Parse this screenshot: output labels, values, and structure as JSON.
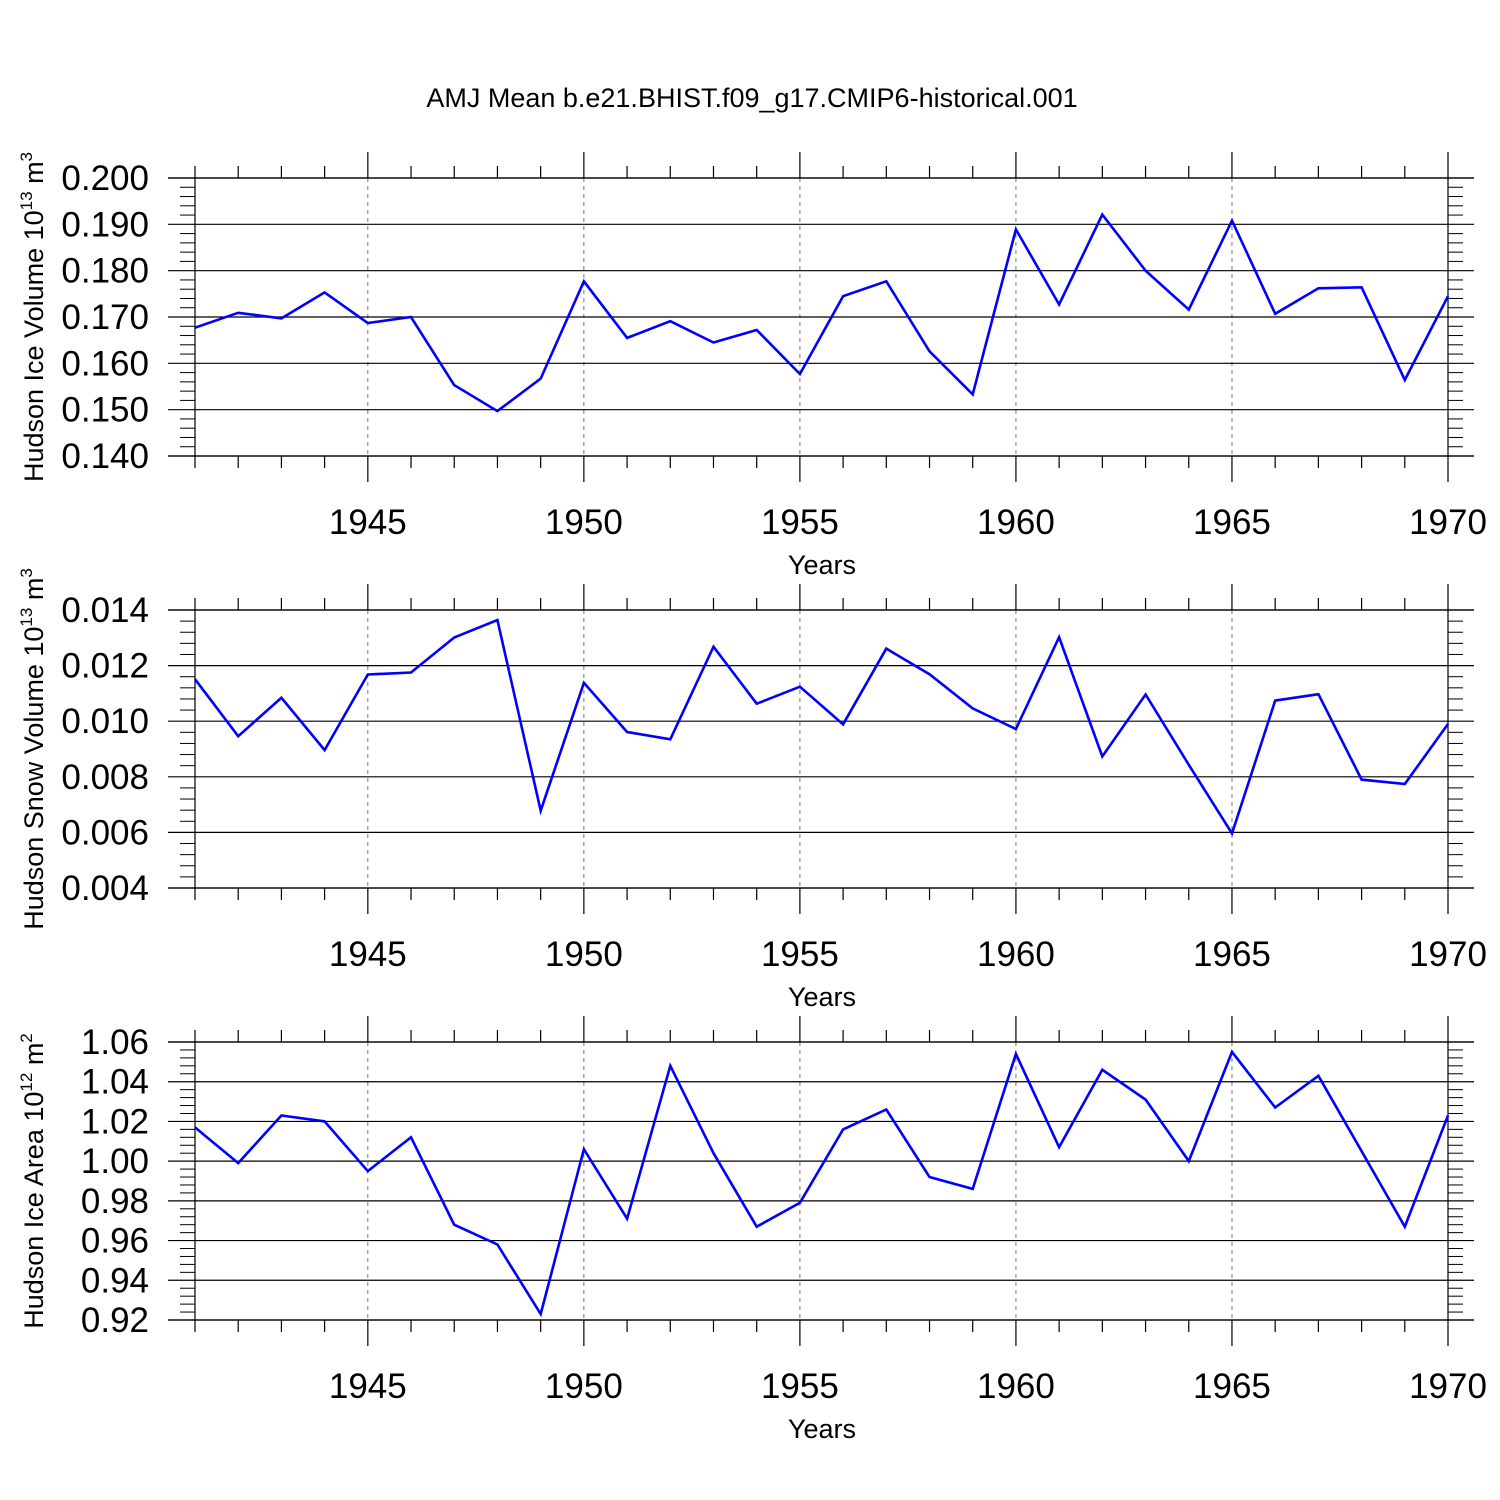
{
  "title": "AMJ Mean b.e21.BHIST.f09_g17.CMIP6-historical.001",
  "colors": {
    "line": "#0000ff",
    "axis": "#000000",
    "grid": "#7a7a7a"
  },
  "chart_data": [
    {
      "type": "line",
      "ylabel": {
        "main": "Hudson Ice Volume 10",
        "sup": "13",
        "unit": " m",
        "unit_sup": "3"
      },
      "xlabel": "Years",
      "xlim": [
        1941,
        1970
      ],
      "ylim": [
        0.14,
        0.2
      ],
      "yticks": [
        "0.140",
        "0.150",
        "0.160",
        "0.170",
        "0.180",
        "0.190",
        "0.200"
      ],
      "xticks": [
        "1945",
        "1950",
        "1955",
        "1960",
        "1965",
        "1970"
      ],
      "series": [
        {
          "name": "Hudson Ice Volume",
          "x": [
            1941,
            1942,
            1943,
            1944,
            1945,
            1946,
            1947,
            1948,
            1949,
            1950,
            1951,
            1952,
            1953,
            1954,
            1955,
            1956,
            1957,
            1958,
            1959,
            1960,
            1961,
            1962,
            1963,
            1964,
            1965,
            1966,
            1967,
            1968,
            1969,
            1970
          ],
          "values": [
            0.1677,
            0.1709,
            0.1697,
            0.1753,
            0.1687,
            0.17,
            0.1553,
            0.1497,
            0.1567,
            0.1777,
            0.1655,
            0.1691,
            0.1645,
            0.1672,
            0.1577,
            0.1745,
            0.1777,
            0.1626,
            0.1533,
            0.1889,
            0.1727,
            0.1921,
            0.18,
            0.1716,
            0.1908,
            0.1707,
            0.1762,
            0.1764,
            0.1564,
            0.1745
          ]
        }
      ]
    },
    {
      "type": "line",
      "ylabel": {
        "main": "Hudson Snow Volume 10",
        "sup": "13",
        "unit": " m",
        "unit_sup": "3"
      },
      "xlabel": "Years",
      "xlim": [
        1941,
        1970
      ],
      "ylim": [
        0.004,
        0.014
      ],
      "yticks": [
        "0.004",
        "0.006",
        "0.008",
        "0.010",
        "0.012",
        "0.014"
      ],
      "xticks": [
        "1945",
        "1950",
        "1955",
        "1960",
        "1965",
        "1970"
      ],
      "series": [
        {
          "name": "Hudson Snow Volume",
          "x": [
            1941,
            1942,
            1943,
            1944,
            1945,
            1946,
            1947,
            1948,
            1949,
            1950,
            1951,
            1952,
            1953,
            1954,
            1955,
            1956,
            1957,
            1958,
            1959,
            1960,
            1961,
            1962,
            1963,
            1964,
            1965,
            1966,
            1967,
            1968,
            1969,
            1970
          ],
          "values": [
            0.01151,
            0.00946,
            0.01084,
            0.00896,
            0.01168,
            0.01175,
            0.01301,
            0.01364,
            0.00678,
            0.01138,
            0.00961,
            0.00935,
            0.01268,
            0.01063,
            0.01124,
            0.00989,
            0.01261,
            0.01169,
            0.01046,
            0.00972,
            0.01302,
            0.00873,
            0.01096,
            0.00843,
            0.00596,
            0.01074,
            0.01097,
            0.0079,
            0.00774,
            0.0099
          ]
        }
      ]
    },
    {
      "type": "line",
      "ylabel": {
        "main": "Hudson Ice Area 10",
        "sup": "12",
        "unit": " m",
        "unit_sup": "2"
      },
      "xlabel": "Years",
      "xlim": [
        1941,
        1970
      ],
      "ylim": [
        0.92,
        1.06
      ],
      "yticks": [
        "0.92",
        "0.94",
        "0.96",
        "0.98",
        "1.00",
        "1.02",
        "1.04",
        "1.06"
      ],
      "xticks": [
        "1945",
        "1950",
        "1955",
        "1960",
        "1965",
        "1970"
      ],
      "series": [
        {
          "name": "Hudson Ice Area",
          "x": [
            1941,
            1942,
            1943,
            1944,
            1945,
            1946,
            1947,
            1948,
            1949,
            1950,
            1951,
            1952,
            1953,
            1954,
            1955,
            1956,
            1957,
            1958,
            1959,
            1960,
            1961,
            1962,
            1963,
            1964,
            1965,
            1966,
            1967,
            1968,
            1969,
            1970
          ],
          "values": [
            1.017,
            0.999,
            1.023,
            1.02,
            0.995,
            1.012,
            0.968,
            0.958,
            0.923,
            1.006,
            0.971,
            1.048,
            1.004,
            0.967,
            0.979,
            1.016,
            1.026,
            0.992,
            0.986,
            1.054,
            1.007,
            1.046,
            1.031,
            1.0,
            1.055,
            1.027,
            1.043,
            1.005,
            0.967,
            1.023
          ]
        }
      ]
    }
  ]
}
